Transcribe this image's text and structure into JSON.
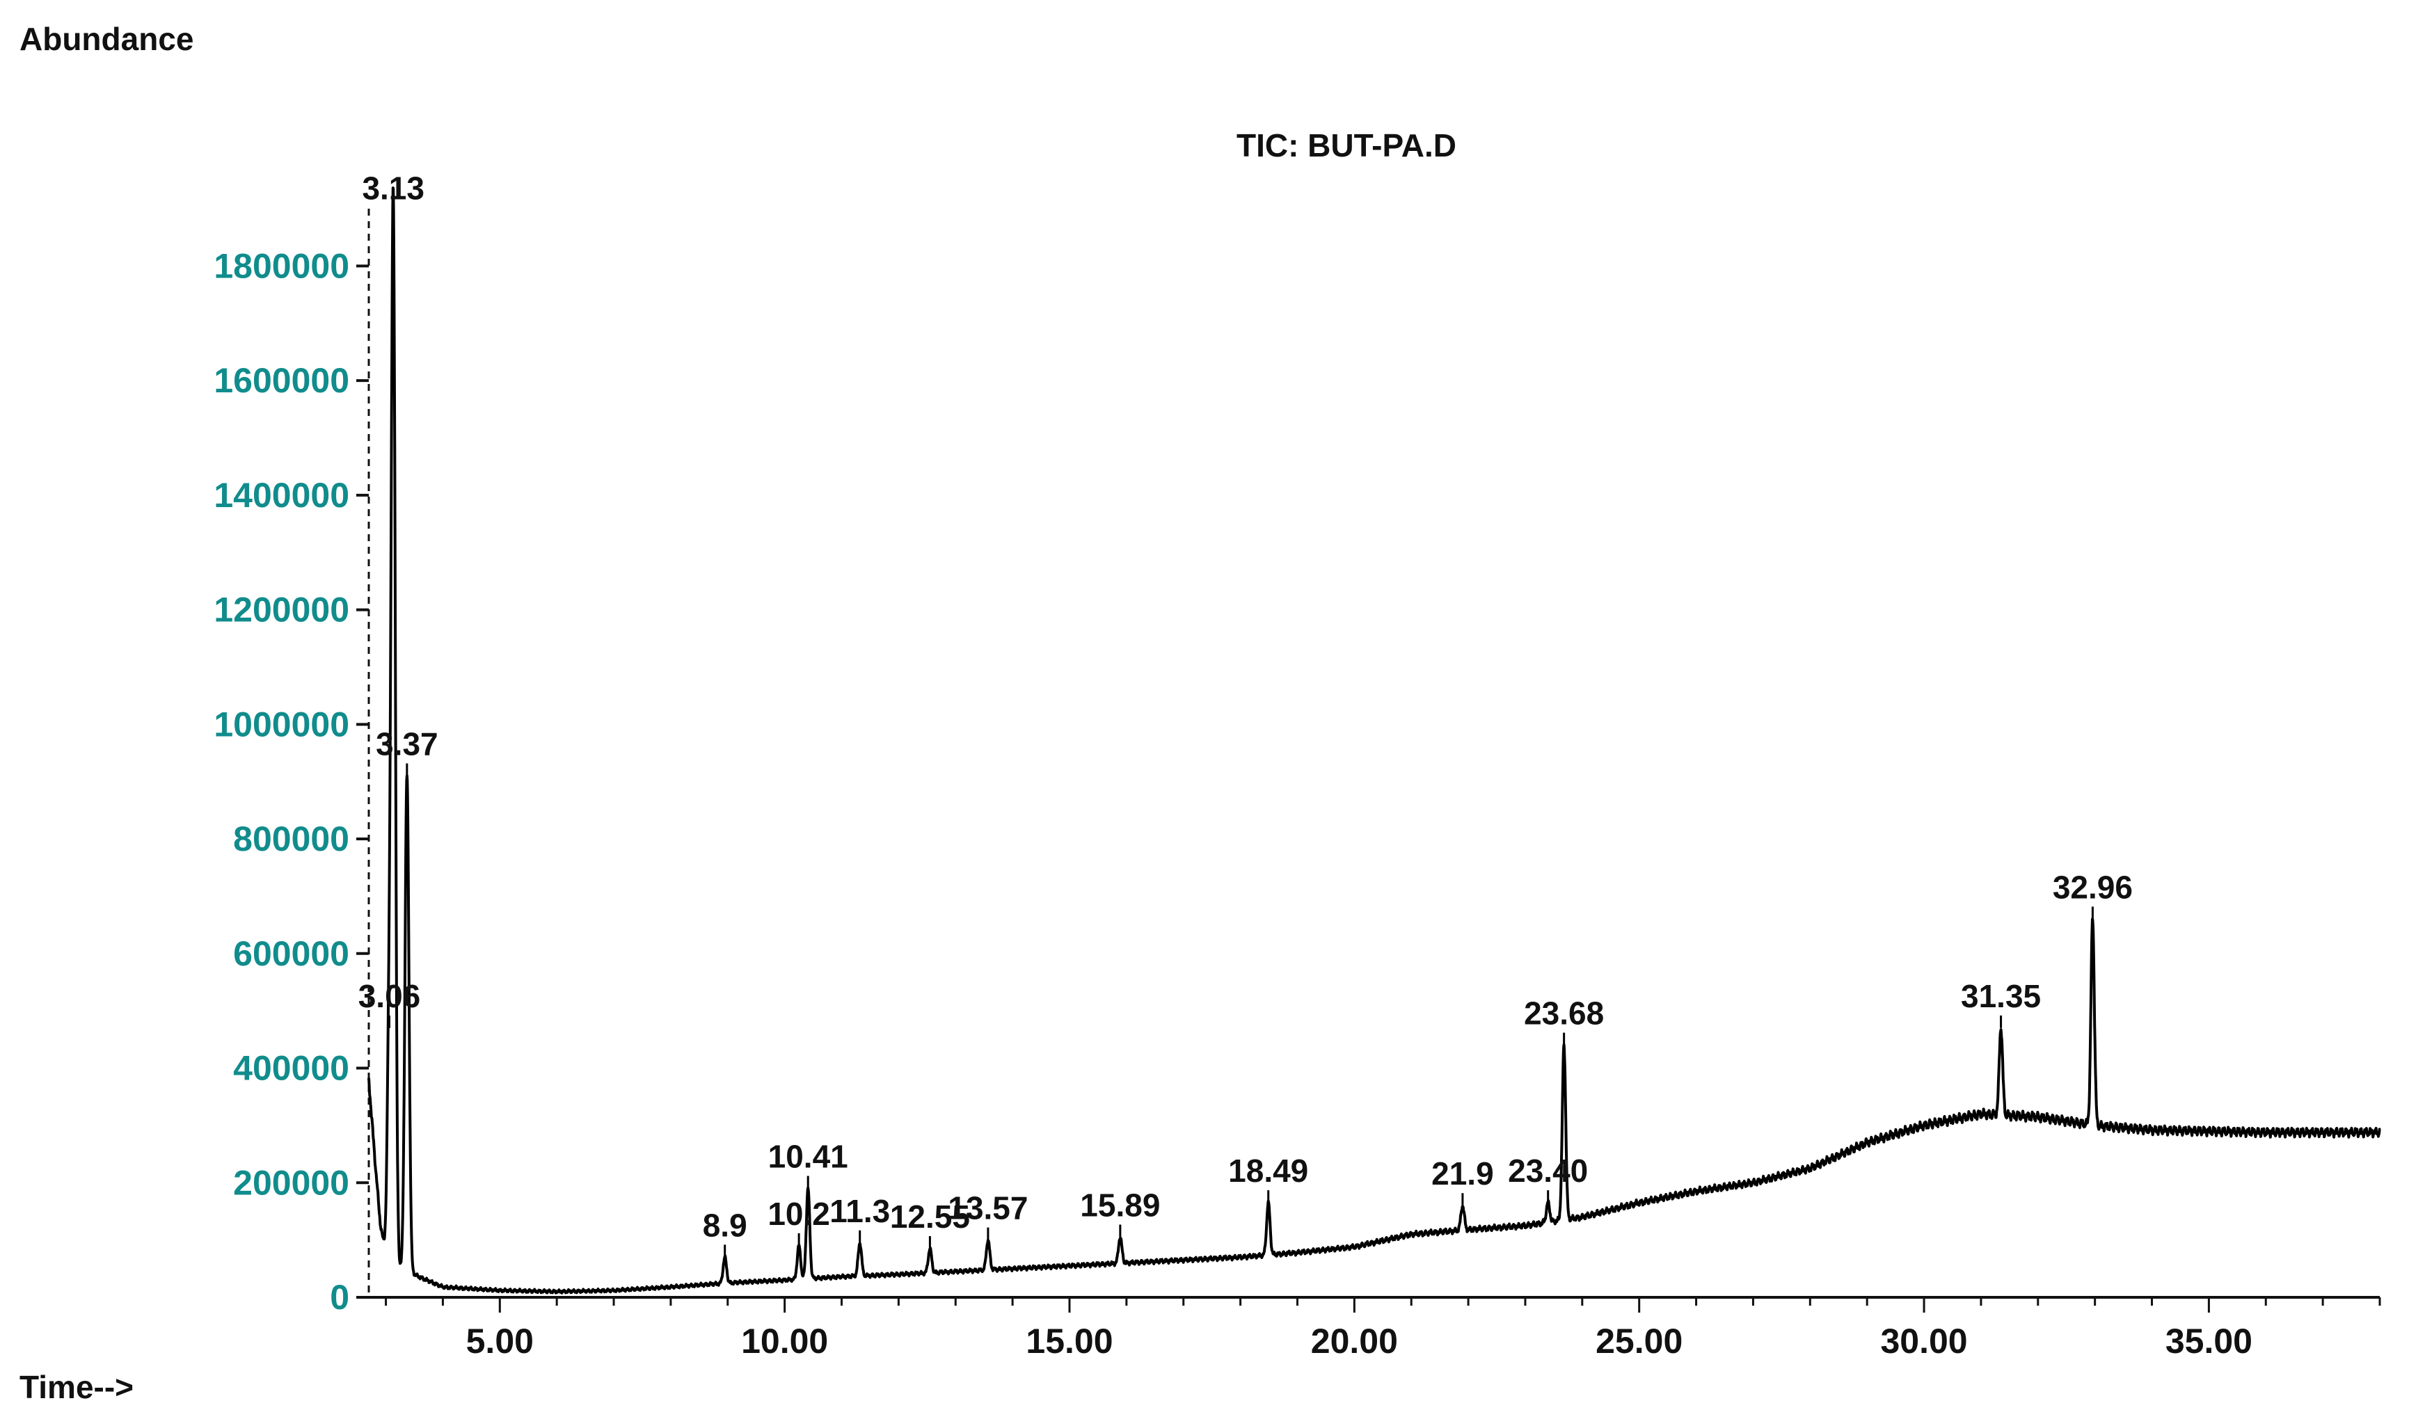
{
  "chart_data": {
    "type": "line",
    "title": "TIC: BUT-PA.D",
    "ylabel": "Abundance",
    "xlabel": "Time-->",
    "xlim": [
      2.7,
      38.0
    ],
    "ylim": [
      0,
      1900000
    ],
    "x_ticks": [
      5.0,
      10.0,
      15.0,
      20.0,
      25.0,
      30.0,
      35.0
    ],
    "x_tick_labels": [
      "5.00",
      "10.00",
      "15.00",
      "20.00",
      "25.00",
      "30.00",
      "35.00"
    ],
    "y_ticks": [
      0,
      200000,
      400000,
      600000,
      800000,
      1000000,
      1200000,
      1400000,
      1600000,
      1800000
    ],
    "y_tick_labels": [
      "0",
      "200000",
      "400000",
      "600000",
      "800000",
      "1000000",
      "1200000",
      "1400000",
      "1600000",
      "1800000"
    ],
    "baseline": [
      [
        2.7,
        380000
      ],
      [
        2.8,
        250000
      ],
      [
        2.9,
        130000
      ],
      [
        3.0,
        70000
      ],
      [
        3.3,
        50000
      ],
      [
        3.6,
        35000
      ],
      [
        4.0,
        18000
      ],
      [
        5.0,
        12000
      ],
      [
        6.0,
        10000
      ],
      [
        7.0,
        12000
      ],
      [
        8.0,
        18000
      ],
      [
        9.0,
        25000
      ],
      [
        10.0,
        30000
      ],
      [
        11.0,
        36000
      ],
      [
        12.0,
        40000
      ],
      [
        13.0,
        45000
      ],
      [
        14.0,
        50000
      ],
      [
        15.0,
        55000
      ],
      [
        16.0,
        60000
      ],
      [
        17.0,
        65000
      ],
      [
        18.0,
        70000
      ],
      [
        19.0,
        78000
      ],
      [
        20.0,
        88000
      ],
      [
        21.0,
        110000
      ],
      [
        22.0,
        118000
      ],
      [
        23.0,
        125000
      ],
      [
        24.0,
        140000
      ],
      [
        25.0,
        165000
      ],
      [
        26.0,
        185000
      ],
      [
        27.0,
        200000
      ],
      [
        28.0,
        225000
      ],
      [
        29.0,
        270000
      ],
      [
        30.0,
        300000
      ],
      [
        31.0,
        320000
      ],
      [
        32.0,
        315000
      ],
      [
        33.0,
        300000
      ],
      [
        34.0,
        292000
      ],
      [
        35.0,
        290000
      ],
      [
        36.0,
        288000
      ],
      [
        37.0,
        288000
      ],
      [
        38.0,
        288000
      ]
    ],
    "peaks": [
      {
        "rt": 3.06,
        "abundance": 470000,
        "label": "3.06"
      },
      {
        "rt": 3.13,
        "abundance": 1880000,
        "label": "3.13"
      },
      {
        "rt": 3.37,
        "abundance": 910000,
        "label": "3.37"
      },
      {
        "rt": 8.95,
        "abundance": 70000,
        "label": "8.9"
      },
      {
        "rt": 10.25,
        "abundance": 90000,
        "label": "10.2"
      },
      {
        "rt": 10.41,
        "abundance": 190000,
        "label": "10.41"
      },
      {
        "rt": 11.32,
        "abundance": 95000,
        "label": "11.3"
      },
      {
        "rt": 12.55,
        "abundance": 85000,
        "label": "12.55"
      },
      {
        "rt": 13.57,
        "abundance": 100000,
        "label": "13.57"
      },
      {
        "rt": 15.89,
        "abundance": 105000,
        "label": "15.89"
      },
      {
        "rt": 18.49,
        "abundance": 165000,
        "label": "18.49"
      },
      {
        "rt": 21.9,
        "abundance": 160000,
        "label": "21.9"
      },
      {
        "rt": 23.4,
        "abundance": 165000,
        "label": "23.40"
      },
      {
        "rt": 23.68,
        "abundance": 440000,
        "label": "23.68"
      },
      {
        "rt": 31.35,
        "abundance": 470000,
        "label": "31.35"
      },
      {
        "rt": 32.96,
        "abundance": 660000,
        "label": "32.96"
      }
    ]
  }
}
